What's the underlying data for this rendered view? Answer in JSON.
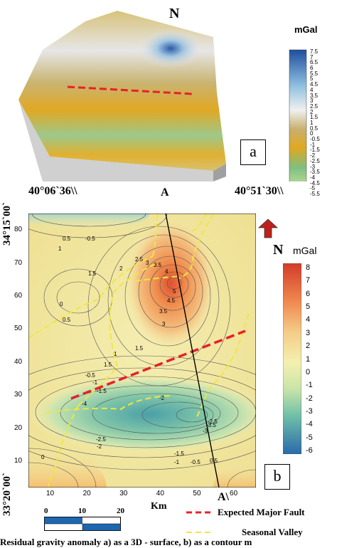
{
  "panel_a": {
    "north_label": "N",
    "unit_label": "mGal",
    "colorbar_ticks": [
      "7.5",
      "7",
      "6.5",
      "6",
      "5.5",
      "5",
      "4.5",
      "4",
      "3.5",
      "3",
      "2.5",
      "2",
      "1.5",
      "1",
      "0.5",
      "0",
      "-0.5",
      "-1",
      "-1.5",
      "-2",
      "-2.5",
      "-3",
      "-3.5",
      "-4",
      "-4.5",
      "-5",
      "-5.5"
    ],
    "panel_label": "a"
  },
  "panel_b": {
    "coord_top_left": "40°06`36\\\\",
    "coord_top_right": "40°51`30\\\\",
    "coord_left_top": "34°15`00`",
    "coord_left_bottom": "33°20`00`",
    "profile_start": "A",
    "profile_end": "A\\",
    "north_label": "N",
    "unit_label": "mGal",
    "colorbar_ticks": [
      "8",
      "7",
      "6",
      "5",
      "4",
      "3",
      "2",
      "1",
      "0",
      "-1",
      "-2",
      "-3",
      "-4",
      "-5",
      "-6"
    ],
    "y_ticks": [
      "80",
      "70",
      "60",
      "50",
      "40",
      "30",
      "20",
      "10"
    ],
    "x_ticks": [
      "10",
      "20",
      "30",
      "40",
      "50",
      "60"
    ],
    "x_unit": "Km",
    "panel_label": "b",
    "contour_labels": [
      "0.5",
      "-0.5",
      "1",
      "2.5",
      "3",
      "1.5",
      "2",
      "3.5",
      "4",
      "5",
      "4.5",
      "1.5",
      "0",
      "0.5",
      "3.5",
      "3",
      "1",
      "1.5",
      "-0.5",
      "-1",
      "-1.5",
      "-2",
      "-2.5",
      "-3",
      "-3.5",
      "-4",
      "-2.5",
      "-2",
      "-1.5",
      "-1",
      "-0.5",
      "0.5",
      "0"
    ]
  },
  "scale_bar": {
    "ticks": [
      "0",
      "10",
      "20"
    ]
  },
  "legend": {
    "fault_label": "Expected Major Fault",
    "valley_label": "Seasonal Valley",
    "fault_color": "#e8202a",
    "valley_color": "#f0e640"
  },
  "caption": "Residual gravity anomaly a) as a 3D - surface, b) as a contour m"
}
